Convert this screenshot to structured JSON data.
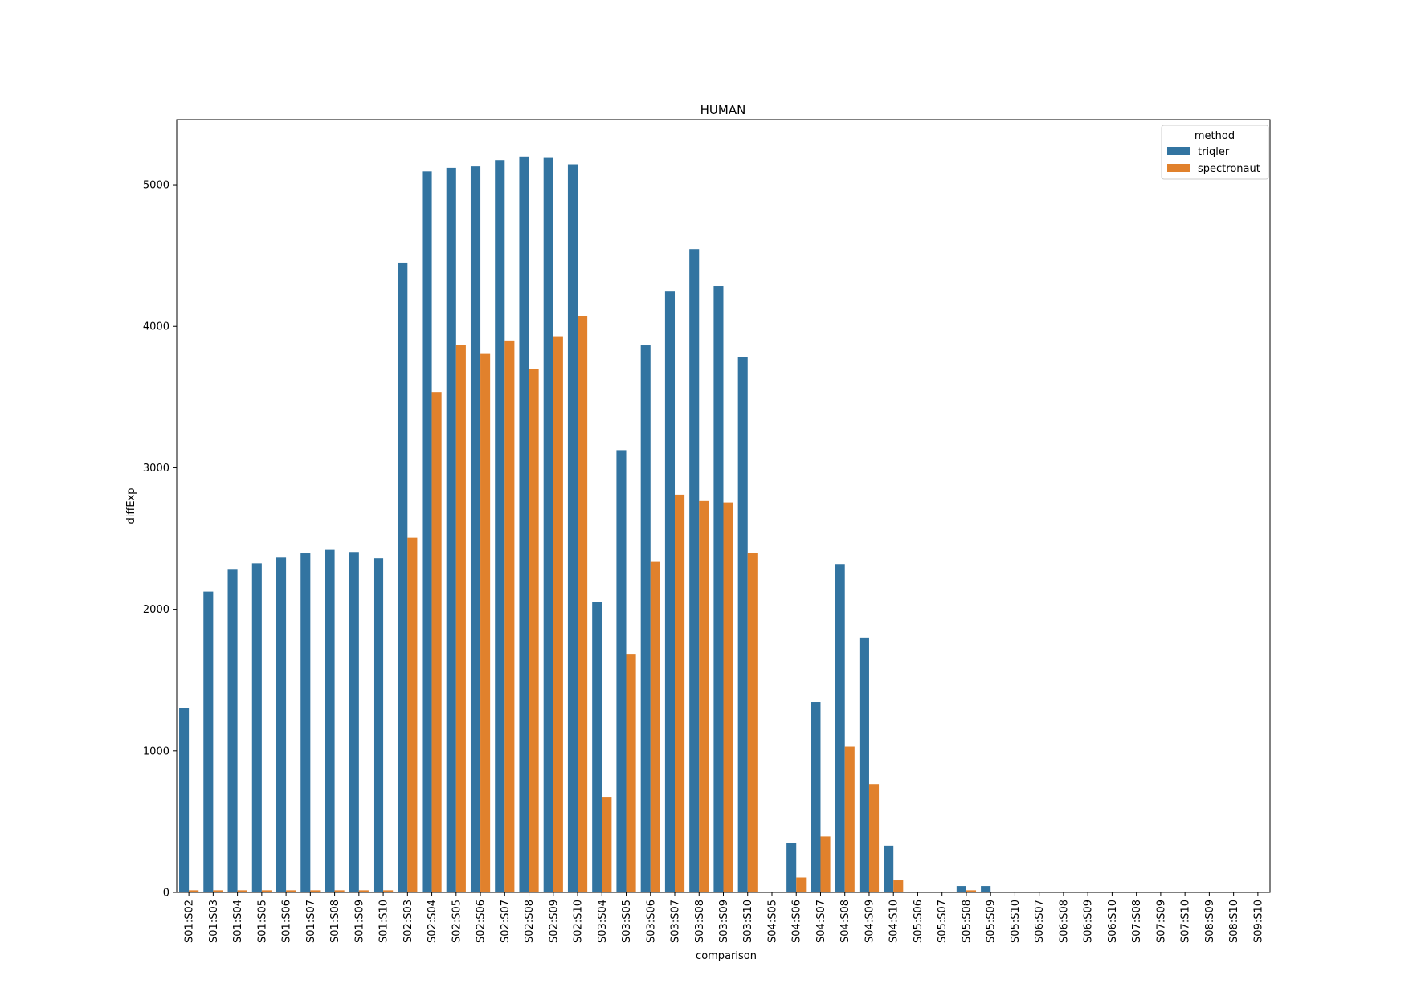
{
  "chart_data": {
    "type": "bar",
    "title": "HUMAN",
    "xlabel": "comparison",
    "ylabel": "diffExp",
    "ylim": [
      0,
      5460
    ],
    "yticks": [
      0,
      1000,
      2000,
      3000,
      4000,
      5000
    ],
    "grid": false,
    "legend": {
      "title": "method",
      "position": "top-right"
    },
    "categories": [
      "S01:S02",
      "S01:S03",
      "S01:S04",
      "S01:S05",
      "S01:S06",
      "S01:S07",
      "S01:S08",
      "S01:S09",
      "S01:S10",
      "S02:S03",
      "S02:S04",
      "S02:S05",
      "S02:S06",
      "S02:S07",
      "S02:S08",
      "S02:S09",
      "S02:S10",
      "S03:S04",
      "S03:S05",
      "S03:S06",
      "S03:S07",
      "S03:S08",
      "S03:S09",
      "S03:S10",
      "S04:S05",
      "S04:S06",
      "S04:S07",
      "S04:S08",
      "S04:S09",
      "S04:S10",
      "S05:S06",
      "S05:S07",
      "S05:S08",
      "S05:S09",
      "S05:S10",
      "S06:S07",
      "S06:S08",
      "S06:S09",
      "S06:S10",
      "S07:S08",
      "S07:S09",
      "S07:S10",
      "S08:S09",
      "S08:S10",
      "S09:S10"
    ],
    "series": [
      {
        "name": "triqler",
        "color": "#3274a1",
        "values": [
          1305,
          2125,
          2280,
          2325,
          2365,
          2395,
          2420,
          2405,
          2360,
          4450,
          5095,
          5120,
          5130,
          5175,
          5200,
          5190,
          5145,
          2050,
          3125,
          3865,
          4250,
          4545,
          4285,
          3785,
          0,
          350,
          1345,
          2320,
          1800,
          330,
          0,
          5,
          45,
          45,
          0,
          0,
          0,
          0,
          0,
          0,
          0,
          0,
          0,
          0,
          0
        ]
      },
      {
        "name": "spectronaut",
        "color": "#e1812c",
        "values": [
          15,
          15,
          15,
          15,
          15,
          15,
          15,
          15,
          15,
          2505,
          3535,
          3870,
          3805,
          3900,
          3700,
          3930,
          4070,
          675,
          1685,
          2335,
          2810,
          2765,
          2755,
          2400,
          0,
          105,
          395,
          1030,
          765,
          85,
          0,
          0,
          15,
          5,
          0,
          0,
          0,
          0,
          0,
          0,
          0,
          0,
          0,
          0,
          0
        ]
      }
    ]
  }
}
